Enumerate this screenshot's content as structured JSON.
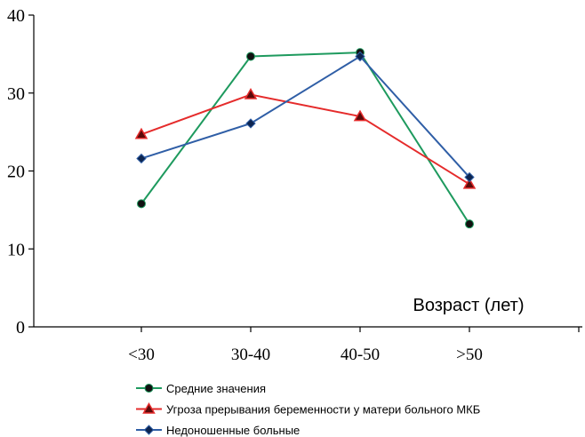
{
  "chart_data": {
    "type": "line",
    "title": "",
    "xlabel": "Возраст (лет)",
    "ylabel": "",
    "categories": [
      "<30",
      "30-40",
      "40-50",
      ">50"
    ],
    "ylim": [
      0,
      40
    ],
    "yticks": [
      0,
      10,
      20,
      30,
      40
    ],
    "grid": false,
    "legend_position": "bottom",
    "series": [
      {
        "name": "Средние значения",
        "values": [
          15.8,
          34.7,
          35.2,
          13.2
        ],
        "color": "#1e9a5e",
        "marker": "circle"
      },
      {
        "name": "Угроза прерывания беременности у матери больного МКБ",
        "values": [
          24.7,
          29.8,
          27.0,
          18.3
        ],
        "color": "#e52b2b",
        "marker": "triangle"
      },
      {
        "name": "Недоношенные больные",
        "values": [
          21.6,
          26.1,
          34.7,
          19.2
        ],
        "color": "#2f5ea6",
        "marker": "diamond"
      }
    ]
  }
}
